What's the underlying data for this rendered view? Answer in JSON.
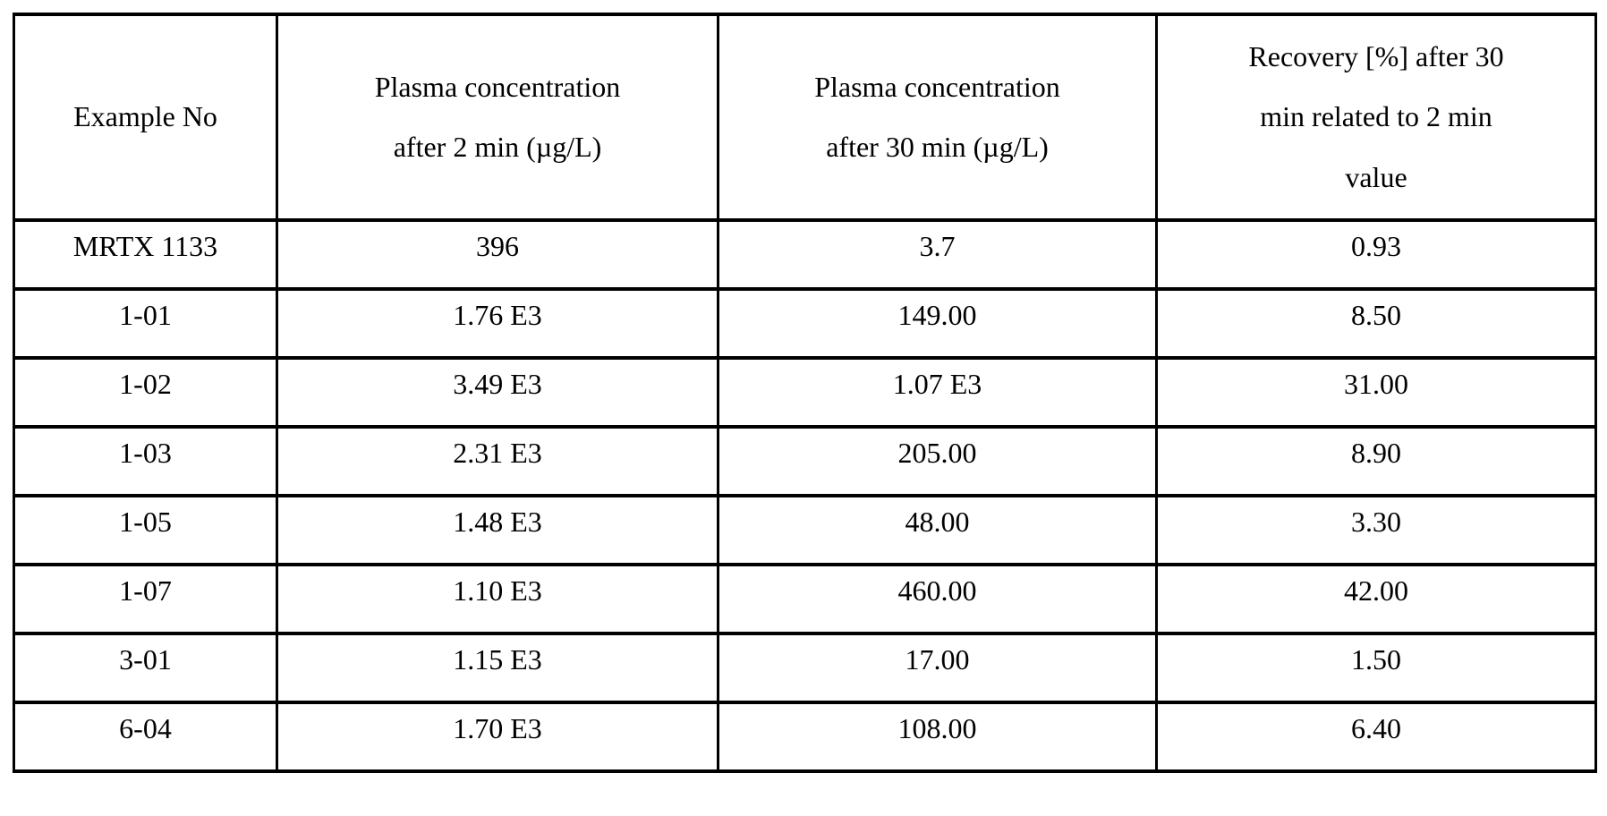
{
  "table": {
    "headers": [
      "Example No",
      "Plasma concentration\nafter 2 min (µg/L)",
      "Plasma concentration\nafter 30 min (µg/L)",
      "Recovery [%] after 30\nmin related to 2 min\nvalue"
    ],
    "rows": [
      [
        "MRTX 1133",
        "396",
        "3.7",
        "0.93"
      ],
      [
        "1-01",
        "1.76 E3",
        "149.00",
        "8.50"
      ],
      [
        "1-02",
        "3.49 E3",
        "1.07 E3",
        "31.00"
      ],
      [
        "1-03",
        "2.31 E3",
        "205.00",
        "8.90"
      ],
      [
        "1-05",
        "1.48 E3",
        "48.00",
        "3.30"
      ],
      [
        "1-07",
        "1.10 E3",
        "460.00",
        "42.00"
      ],
      [
        "3-01",
        "1.15 E3",
        "17.00",
        "1.50"
      ],
      [
        "6-04",
        "1.70 E3",
        "108.00",
        "6.40"
      ]
    ],
    "colors": {
      "border": "#000000",
      "text": "#000000",
      "background": "#ffffff"
    }
  }
}
